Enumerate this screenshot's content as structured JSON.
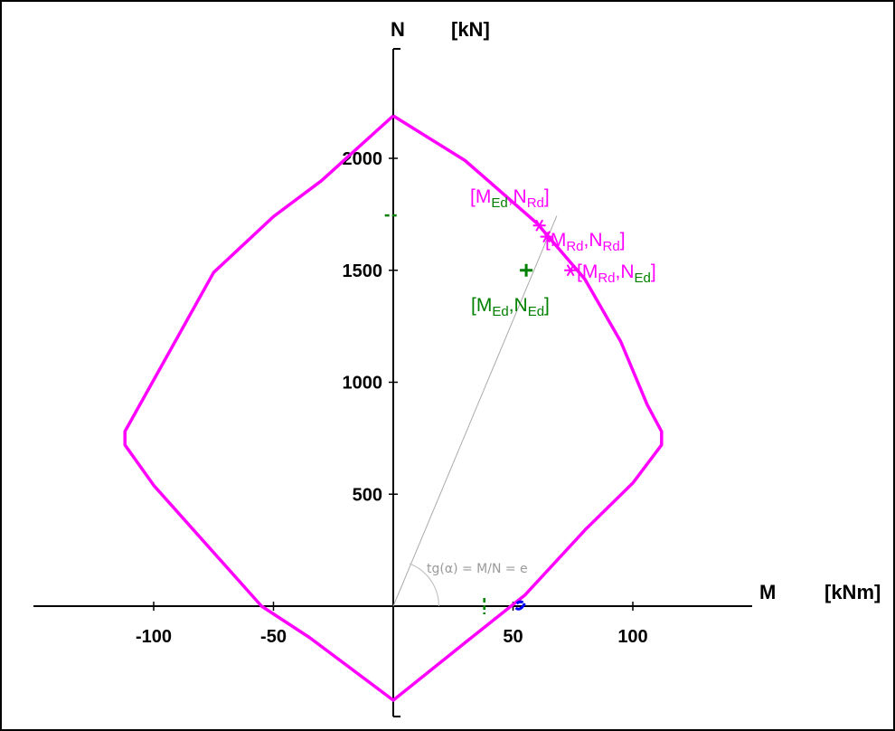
{
  "chart_data": {
    "type": "line",
    "title": "",
    "x_axis": {
      "label": "M",
      "unit": "[kNm]",
      "range": [
        -150,
        150
      ],
      "ticks": [
        -100,
        -50,
        50,
        100
      ]
    },
    "y_axis": {
      "label": "N",
      "unit": "[kN]",
      "range": [
        -450,
        2400
      ],
      "ticks": [
        500,
        1000,
        1500,
        2000
      ]
    },
    "grid": false,
    "series": [
      {
        "color": "#ff00ff",
        "points": [
          [
            0,
            2190
          ],
          [
            30,
            1990
          ],
          [
            60,
            1710
          ],
          [
            80,
            1460
          ],
          [
            95,
            1180
          ],
          [
            106,
            900
          ],
          [
            112,
            780
          ],
          [
            112,
            720
          ],
          [
            100,
            550
          ],
          [
            80,
            340
          ],
          [
            55,
            50
          ],
          [
            35,
            -120
          ],
          [
            0,
            -420
          ],
          [
            -35,
            -140
          ],
          [
            -55,
            0
          ],
          [
            -80,
            300
          ],
          [
            -100,
            540
          ],
          [
            -112,
            720
          ],
          [
            -112,
            780
          ],
          [
            -100,
            1010
          ],
          [
            -75,
            1490
          ],
          [
            -50,
            1740
          ],
          [
            -30,
            1900
          ],
          [
            0,
            2190
          ]
        ]
      }
    ],
    "eccentricity_line": {
      "from": [
        0,
        0
      ],
      "through": [
        65,
        1660
      ],
      "color": "#aaaaaa"
    },
    "points": [
      {
        "x": 55.5,
        "y": 1500,
        "marker": "plus",
        "color": "#008000"
      },
      {
        "x": 61,
        "y": 1700,
        "marker": "star",
        "color": "#ff00ff"
      },
      {
        "x": 64,
        "y": 1650,
        "marker": "star",
        "color": "#ff00ff"
      },
      {
        "x": 74,
        "y": 1500,
        "marker": "star",
        "color": "#ff00ff"
      },
      {
        "x": -0.5,
        "y": 1745,
        "marker": "dash",
        "color": "#008000"
      },
      {
        "x": 38,
        "y": 0,
        "marker": "vtick",
        "color": "#008000"
      },
      {
        "x": 53,
        "y": 0,
        "marker": "dot",
        "color": "#0000ff"
      }
    ],
    "annotations": [
      {
        "name": "med-nrd",
        "parts": [
          [
            "[M",
            ""
          ],
          [
            "Ed",
            "sub"
          ],
          [
            ",N",
            ""
          ],
          [
            "Rd",
            "sub"
          ],
          [
            "]",
            ""
          ]
        ],
        "colors": [
          "#ff00ff",
          "#008000",
          "#ff00ff",
          "#ff00ff",
          "#ff00ff"
        ]
      },
      {
        "name": "mrd-nrd",
        "parts": [
          [
            "[M",
            ""
          ],
          [
            "Rd",
            "sub"
          ],
          [
            ",N",
            ""
          ],
          [
            "Rd",
            "sub"
          ],
          [
            "]",
            ""
          ]
        ],
        "colors": [
          "#ff00ff",
          "#ff00ff",
          "#ff00ff",
          "#ff00ff",
          "#ff00ff"
        ]
      },
      {
        "name": "mrd-ned",
        "parts": [
          [
            "[M",
            ""
          ],
          [
            "Rd",
            "sub"
          ],
          [
            ",N",
            ""
          ],
          [
            "Ed",
            "sub"
          ],
          [
            "]",
            ""
          ]
        ],
        "colors": [
          "#ff00ff",
          "#ff00ff",
          "#ff00ff",
          "#008000",
          "#ff00ff"
        ]
      },
      {
        "name": "med-ned",
        "parts": [
          [
            "[M",
            ""
          ],
          [
            "Ed",
            "sub"
          ],
          [
            ",N",
            ""
          ],
          [
            "Ed",
            "sub"
          ],
          [
            "]",
            ""
          ]
        ],
        "colors": [
          "#008000",
          "#008000",
          "#008000",
          "#008000",
          "#008000"
        ]
      }
    ],
    "angle_label": "tg(α) = M/N = e"
  }
}
